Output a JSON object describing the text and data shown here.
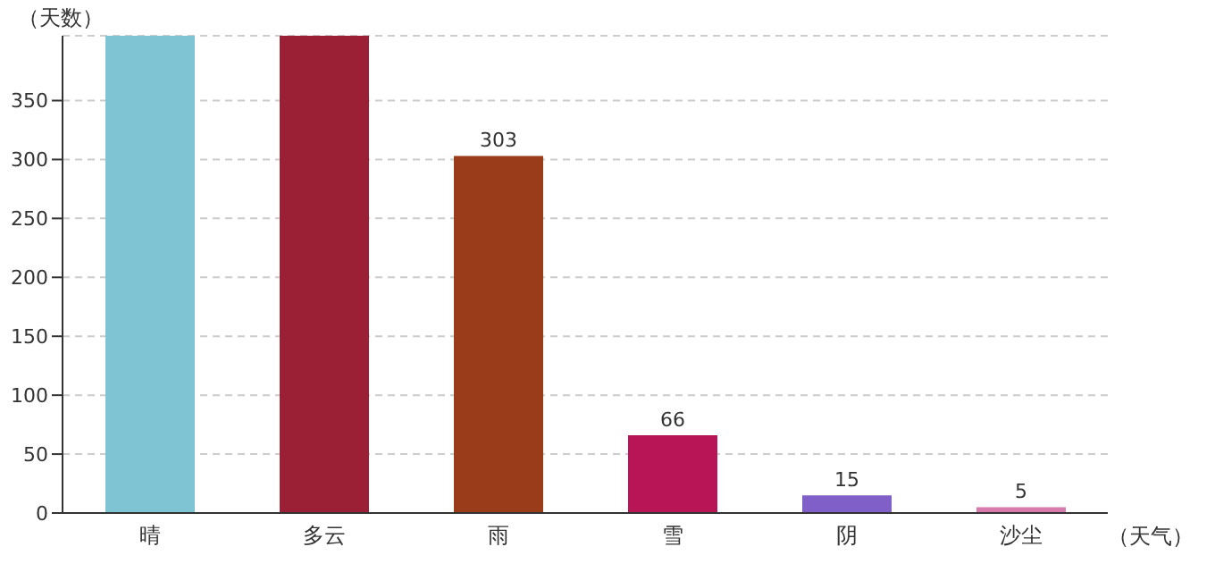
{
  "chart_data": {
    "type": "bar",
    "ylabel": "（天数）",
    "xlabel": "（天气）",
    "categories": [
      "晴",
      "多云",
      "雨",
      "雪",
      "阴",
      "沙尘"
    ],
    "values": [
      405,
      405,
      303,
      66,
      15,
      5
    ],
    "colors": [
      "#7ec4d2",
      "#9b1f35",
      "#9a3b1a",
      "#b81557",
      "#8060c8",
      "#d87aab"
    ],
    "value_labels": [
      null,
      null,
      "303",
      "66",
      "15",
      "5"
    ],
    "ylim": [
      0,
      405
    ],
    "yticks": [
      0,
      50,
      100,
      150,
      200,
      250,
      300,
      350
    ],
    "grid": "y",
    "legend": false
  }
}
